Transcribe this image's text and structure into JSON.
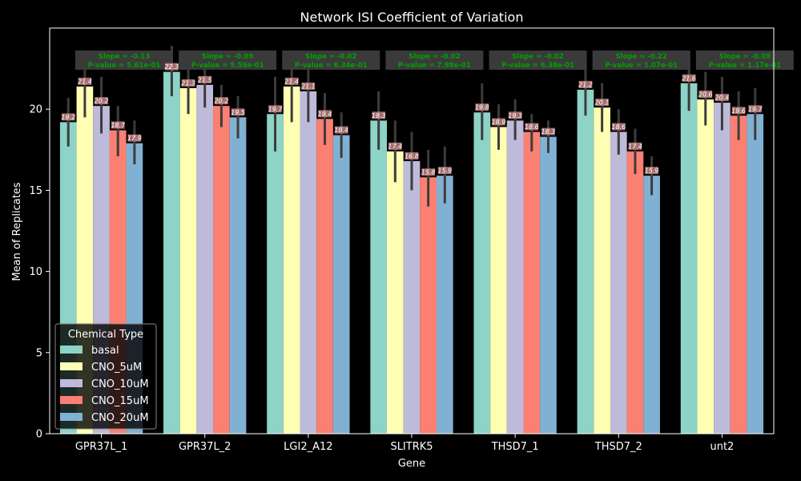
{
  "chart_data": {
    "type": "bar",
    "title": "Network ISI Coefficient of Variation",
    "xlabel": "Gene",
    "ylabel": "Mean of Replicates",
    "ylim": [
      0,
      25
    ],
    "yticks": [
      0,
      5,
      10,
      15,
      20
    ],
    "categories": [
      "GPR37L_1",
      "GPR37L_2",
      "LGI2_A12",
      "SLITRK5",
      "THSD7_1",
      "THSD7_2",
      "unt2"
    ],
    "series": [
      {
        "name": "basal",
        "color": "#8dd3c7",
        "values": [
          19.2,
          22.3,
          19.7,
          19.3,
          19.8,
          21.2,
          21.6
        ],
        "err_low": [
          17.7,
          20.8,
          17.4,
          17.5,
          18.1,
          19.6,
          19.9
        ],
        "err_high": [
          20.7,
          23.9,
          22.0,
          21.1,
          21.6,
          22.8,
          23.3
        ]
      },
      {
        "name": "CNO_5uM",
        "color": "#ffffb3",
        "values": [
          21.4,
          21.3,
          21.4,
          17.4,
          18.9,
          20.1,
          20.6
        ],
        "err_low": [
          19.5,
          19.7,
          19.2,
          15.5,
          17.5,
          18.6,
          19.0
        ],
        "err_high": [
          23.4,
          23.0,
          23.6,
          19.3,
          20.3,
          21.6,
          22.3
        ]
      },
      {
        "name": "CNO_10uM",
        "color": "#bebada",
        "values": [
          20.2,
          21.5,
          21.1,
          16.8,
          19.3,
          18.6,
          20.4
        ],
        "err_low": [
          18.5,
          20.1,
          19.2,
          15.0,
          18.1,
          17.2,
          18.7
        ],
        "err_high": [
          22.0,
          22.9,
          22.9,
          18.6,
          20.6,
          20.0,
          22.0
        ]
      },
      {
        "name": "CNO_15uM",
        "color": "#fb8072",
        "values": [
          18.7,
          20.2,
          19.4,
          15.8,
          18.6,
          17.4,
          19.6
        ],
        "err_low": [
          17.1,
          18.9,
          17.8,
          14.0,
          17.4,
          16.0,
          18.1
        ],
        "err_high": [
          20.2,
          21.5,
          21.0,
          17.5,
          19.7,
          18.8,
          21.1
        ]
      },
      {
        "name": "CNO_20uM",
        "color": "#80b1d3",
        "values": [
          17.9,
          19.5,
          18.4,
          15.9,
          18.3,
          15.9,
          19.7
        ],
        "err_low": [
          16.6,
          18.2,
          17.0,
          14.2,
          17.3,
          14.7,
          18.1
        ],
        "err_high": [
          19.3,
          20.8,
          19.8,
          17.7,
          19.3,
          17.1,
          21.3
        ]
      }
    ],
    "annotations": [
      {
        "slope": "Slope = -0.13",
        "pvalue": "P-value = 5.61e-01"
      },
      {
        "slope": "Slope = -0.09",
        "pvalue": "P-value = 5.59e-01"
      },
      {
        "slope": "Slope = -0.02",
        "pvalue": "P-value = 6.34e-01"
      },
      {
        "slope": "Slope = -0.02",
        "pvalue": "P-value = 7.98e-01"
      },
      {
        "slope": "Slope = -0.02",
        "pvalue": "P-value = 6.38e-01"
      },
      {
        "slope": "Slope = -0.22",
        "pvalue": "P-value = 1.07e-01"
      },
      {
        "slope": "Slope = -0.09",
        "pvalue": "P-value = 1.17e-01"
      }
    ],
    "legend": {
      "title": "Chemical Type",
      "placement": "lower-left"
    },
    "grid": false,
    "colors": {
      "background": "#000000",
      "text": "#ffffff",
      "annotation_text": "#00a000",
      "annotation_box": "#3a3a3a",
      "label_box": "#c08080",
      "errorbar": "#3c3c3c"
    }
  }
}
